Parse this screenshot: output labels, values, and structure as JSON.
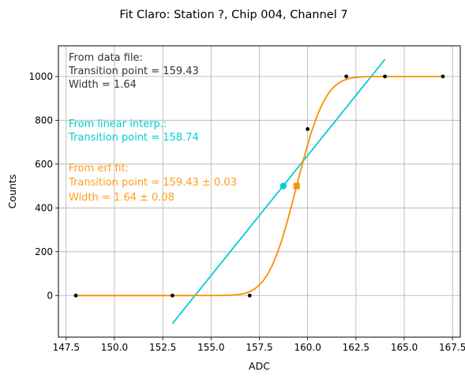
{
  "chart_data": {
    "type": "scatter",
    "title": "Fit Claro: Station ?, Chip 004, Channel 7",
    "xlabel": "ADC",
    "ylabel": "Counts",
    "xlim": [
      147.1,
      167.9
    ],
    "ylim": [
      -190,
      1140
    ],
    "xticks": [
      147.5,
      150.0,
      152.5,
      155.0,
      157.5,
      160.0,
      162.5,
      165.0,
      167.5
    ],
    "xtick_labels": [
      "147.5",
      "150.0",
      "152.5",
      "155.0",
      "157.5",
      "160.0",
      "162.5",
      "165.0",
      "167.5"
    ],
    "yticks": [
      0,
      200,
      400,
      600,
      800,
      1000
    ],
    "ytick_labels": [
      "0",
      "200",
      "400",
      "600",
      "800",
      "1000"
    ],
    "grid": true,
    "colors": {
      "data": "#000000",
      "linear": "#00CED1",
      "erf": "#FF8C00"
    },
    "data_points": {
      "x": [
        148,
        153,
        157,
        160,
        162,
        164,
        167
      ],
      "y": [
        0,
        0,
        0,
        760,
        1000,
        1000,
        1000
      ]
    },
    "linear_interp": {
      "x_range": [
        153,
        164
      ],
      "y_range": [
        -128,
        1078
      ],
      "transition_point": 158.74,
      "marker": {
        "x": 158.74,
        "y": 500
      }
    },
    "erf_fit": {
      "center": 159.43,
      "width": 1.64,
      "amplitude": 1000,
      "x_range": [
        148,
        167
      ],
      "marker": {
        "x": 159.43,
        "y": 500
      }
    },
    "annotations": {
      "data_file": [
        "From data file:",
        "Transition point = 159.43",
        "Width = 1.64"
      ],
      "linear": [
        "From linear interp.:",
        "Transition point = 158.74"
      ],
      "erf": [
        "From erf fit:",
        "Transition point = 159.43 ± 0.03",
        "Width = 1.64 ± 0.08"
      ]
    }
  }
}
